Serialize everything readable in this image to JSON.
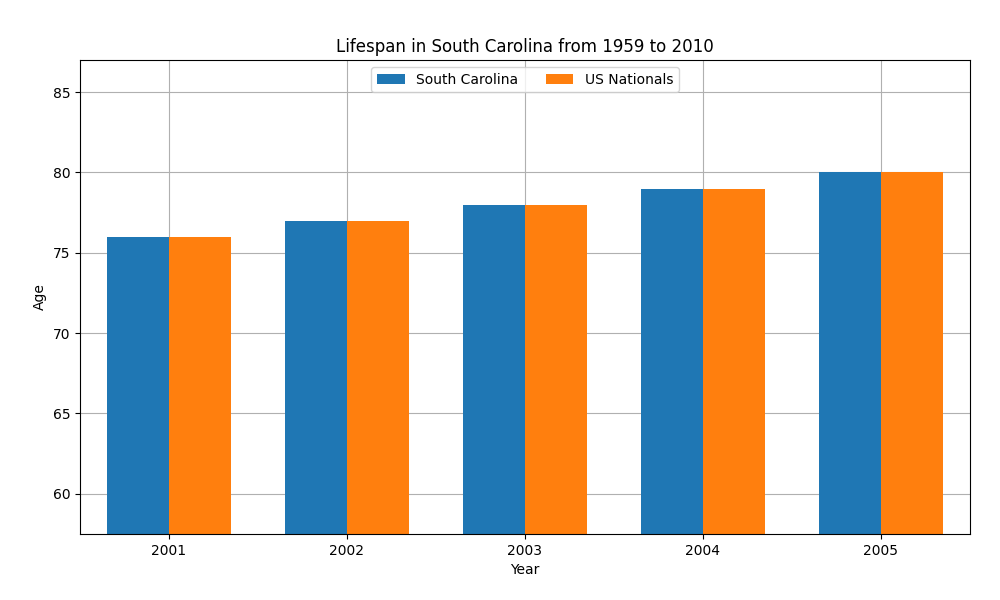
{
  "chart_data": {
    "type": "bar",
    "title": "Lifespan in South Carolina from 1959 to 2010",
    "x_label": "Year",
    "y_label": "Age",
    "categories": [
      "2001",
      "2002",
      "2003",
      "2004",
      "2005"
    ],
    "series": [
      {
        "name": "South Carolina",
        "values": [
          76,
          77,
          78,
          79,
          80
        ]
      },
      {
        "name": "US Nationals",
        "values": [
          76,
          77,
          78,
          79,
          80
        ]
      }
    ],
    "ylim": [
      57.5,
      87
    ],
    "yticks": [
      60,
      65,
      70,
      75,
      80,
      85
    ],
    "grid": true,
    "legend": "upper center"
  }
}
